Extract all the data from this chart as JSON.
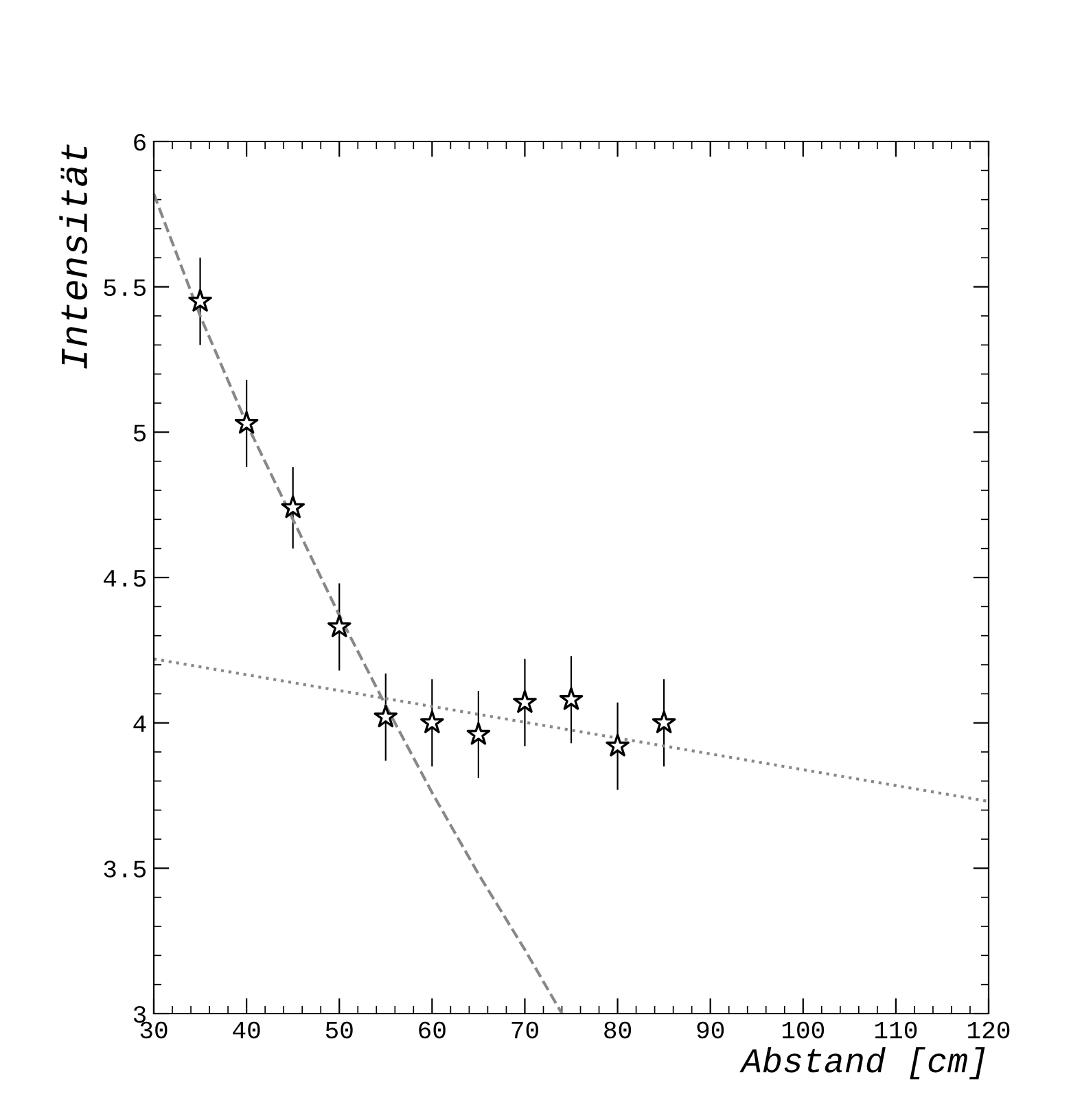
{
  "chart_data": {
    "type": "scatter",
    "xlabel": "Abstand [cm]",
    "ylabel": "Intensität",
    "xlim": [
      30,
      120
    ],
    "ylim": [
      3,
      6
    ],
    "xticks": [
      30,
      40,
      50,
      60,
      70,
      80,
      90,
      100,
      110,
      120
    ],
    "yticks": [
      3,
      3.5,
      4,
      4.5,
      5,
      5.5,
      6
    ],
    "grid": false,
    "legend": false,
    "series": [
      {
        "color": "#000000",
        "marker": "star",
        "x": [
          35,
          40,
          45,
          50,
          55,
          60,
          65,
          70,
          75,
          80,
          85
        ],
        "values": [
          5.45,
          5.03,
          4.74,
          4.33,
          4.02,
          4.0,
          3.96,
          4.07,
          4.08,
          3.92,
          4.0
        ],
        "errors": [
          0.15,
          0.15,
          0.14,
          0.15,
          0.15,
          0.15,
          0.15,
          0.15,
          0.15,
          0.15,
          0.15
        ]
      },
      {
        "type": "line",
        "color": "#888888",
        "line_style": "dashed",
        "marker": "none",
        "x": [
          30,
          35,
          40,
          45,
          50,
          55,
          60,
          65,
          70,
          74
        ],
        "values": [
          5.82,
          5.4,
          5.03,
          4.7,
          4.37,
          4.06,
          3.76,
          3.48,
          3.22,
          3.0
        ]
      },
      {
        "type": "line",
        "color": "#888888",
        "line_style": "dotted",
        "marker": "none",
        "x": [
          30,
          120
        ],
        "values": [
          4.22,
          3.73
        ]
      }
    ]
  }
}
